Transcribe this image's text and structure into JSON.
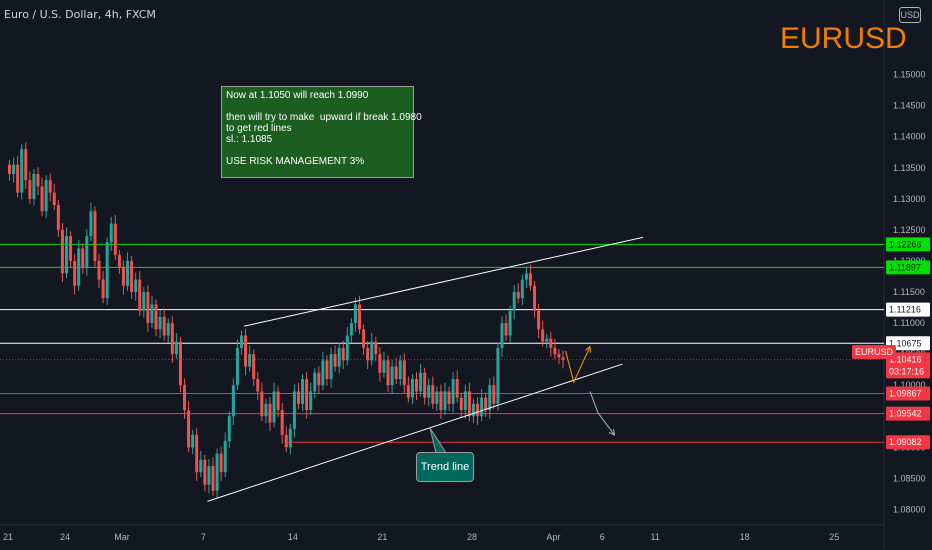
{
  "header": {
    "symbol_label": "Euro / U.S. Dollar, 4h, FXCM"
  },
  "brand": {
    "ticker": "EURUSD",
    "color": "#f57c00"
  },
  "currency_button": "USD",
  "note": {
    "lines": [
      "Now at 1.1050 will reach 1.0990",
      "",
      "then will try to make  upward if break 1.0980",
      "to get red lines",
      "sl.: 1.1085",
      "",
      "USE RISK MANAGEMENT 3%"
    ]
  },
  "trend_label": "Trend line",
  "chart_data": {
    "type": "candlestick",
    "title": "",
    "ylim": [
      1.0775,
      1.162
    ],
    "y_ticks": [
      1.15,
      1.145,
      1.14,
      1.135,
      1.13,
      1.125,
      1.12,
      1.115,
      1.11,
      1.105,
      1.1,
      1.095,
      1.09,
      1.085,
      1.08
    ],
    "x_ticks": [
      {
        "label": "21",
        "bar": 0
      },
      {
        "label": "24",
        "bar": 14
      },
      {
        "label": "Mar",
        "bar": 28
      },
      {
        "label": "7",
        "bar": 48
      },
      {
        "label": "14",
        "bar": 70
      },
      {
        "label": "21",
        "bar": 92
      },
      {
        "label": "28",
        "bar": 114
      },
      {
        "label": "Apr",
        "bar": 134
      },
      {
        "label": "6",
        "bar": 146
      },
      {
        "label": "11",
        "bar": 159
      },
      {
        "label": "18",
        "bar": 181
      },
      {
        "label": "25",
        "bar": 203
      }
    ],
    "horizontal_levels": [
      {
        "value": 1.12266,
        "color": "#00e000",
        "label": "1.12266"
      },
      {
        "value": 1.11897,
        "color": "#00e000",
        "label": "1.11897"
      },
      {
        "value": 1.11216,
        "color": "#ffffff",
        "label": "1.11216"
      },
      {
        "value": 1.10675,
        "color": "#ffffff",
        "label": "1.10675"
      },
      {
        "value": 1.09867,
        "color": "#f23645",
        "label": "1.09867"
      },
      {
        "value": 1.09542,
        "color": "#f23645",
        "label": "1.09542"
      },
      {
        "value": 1.09082,
        "color": "#f23645",
        "label": "1.09082",
        "start_bar": 68
      }
    ],
    "current_price": {
      "value": 1.10416,
      "label": "1.10416",
      "countdown": "03:17:16",
      "symbol": "EURUSD",
      "color": "#f23645"
    },
    "trend_lines": [
      {
        "from": {
          "bar": 58,
          "value": 1.1095
        },
        "to": {
          "bar": 156,
          "value": 1.1238
        }
      },
      {
        "from": {
          "bar": 49,
          "value": 1.0813
        },
        "to": {
          "bar": 151,
          "value": 1.1034
        }
      }
    ],
    "arrows": [
      {
        "points": [
          {
            "bar": 137,
            "value": 1.1055
          },
          {
            "bar": 139,
            "value": 1.1005
          },
          {
            "bar": 143,
            "value": 1.1062
          }
        ],
        "color": "#ff9800"
      },
      {
        "points": [
          {
            "bar": 143,
            "value": 1.099
          },
          {
            "bar": 145,
            "value": 1.0955
          },
          {
            "bar": 149,
            "value": 1.092
          }
        ],
        "color": "#b2b5be"
      }
    ],
    "candles_close": [
      1.134,
      1.1355,
      1.131,
      1.138,
      1.133,
      1.13,
      1.134,
      1.132,
      1.128,
      1.133,
      1.131,
      1.129,
      1.125,
      1.118,
      1.124,
      1.12,
      1.116,
      1.122,
      1.119,
      1.124,
      1.128,
      1.12,
      1.117,
      1.114,
      1.123,
      1.126,
      1.121,
      1.119,
      1.116,
      1.12,
      1.115,
      1.117,
      1.112,
      1.115,
      1.11,
      1.113,
      1.109,
      1.111,
      1.108,
      1.11,
      1.105,
      1.107,
      1.1,
      1.096,
      1.09,
      1.092,
      1.086,
      1.088,
      1.084,
      1.087,
      1.083,
      1.089,
      1.086,
      1.091,
      1.095,
      1.1,
      1.106,
      1.108,
      1.103,
      1.105,
      1.101,
      1.099,
      1.095,
      1.097,
      1.094,
      1.099,
      1.096,
      1.092,
      1.09,
      1.093,
      1.099,
      1.097,
      1.101,
      1.096,
      1.099,
      1.102,
      1.1,
      1.104,
      1.101,
      1.105,
      1.103,
      1.106,
      1.104,
      1.108,
      1.11,
      1.113,
      1.109,
      1.106,
      1.104,
      1.107,
      1.105,
      1.102,
      1.104,
      1.1,
      1.103,
      1.101,
      1.104,
      1.1,
      1.098,
      1.101,
      1.099,
      1.102,
      1.098,
      1.1,
      1.097,
      1.099,
      1.096,
      1.099,
      1.097,
      1.101,
      1.098,
      1.096,
      1.099,
      1.095,
      1.097,
      1.095,
      1.098,
      1.096,
      1.1,
      1.097,
      1.106,
      1.11,
      1.108,
      1.112,
      1.115,
      1.114,
      1.117,
      1.118,
      1.116,
      1.112,
      1.109,
      1.107,
      1.1075,
      1.106,
      1.105,
      1.1045,
      1.1041
    ]
  }
}
